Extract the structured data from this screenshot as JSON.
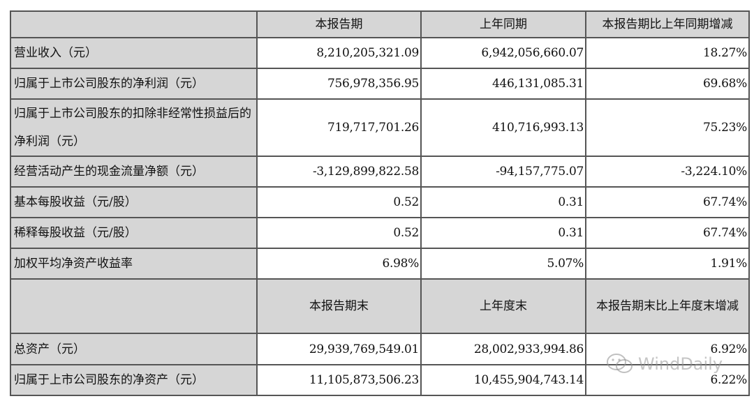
{
  "header1": [
    "",
    "本报告期",
    "上年同期",
    "本报告期比上年同期增减"
  ],
  "rows1": [
    {
      "label": "营业收入（元）",
      "current": "8,210,205,321.09",
      "prior": "6,942,056,660.07",
      "change": "18.27%"
    },
    {
      "label": "归属于上市公司股东的净利润（元）",
      "current": "756,978,356.95",
      "prior": "446,131,085.31",
      "change": "69.68%"
    },
    {
      "label": "归属于上市公司股东的扣除非经常性损益后的净利润（元）",
      "current": "719,717,701.26",
      "prior": "410,716,993.13",
      "change": "75.23%"
    },
    {
      "label": "经营活动产生的现金流量净额（元）",
      "current": "-3,129,899,822.58",
      "prior": "-94,157,775.07",
      "change": "-3,224.10%"
    },
    {
      "label": "基本每股收益（元/股）",
      "current": "0.52",
      "prior": "0.31",
      "change": "67.74%"
    },
    {
      "label": "稀释每股收益（元/股）",
      "current": "0.52",
      "prior": "0.31",
      "change": "67.74%"
    },
    {
      "label": "加权平均净资产收益率",
      "current": "6.98%",
      "prior": "5.07%",
      "change": "1.91%"
    }
  ],
  "header2": [
    "",
    "本报告期末",
    "上年度末",
    "本报告期末比上年度末增减"
  ],
  "rows2": [
    {
      "label": "总资产（元）",
      "current": "29,939,769,549.01",
      "prior": "28,002,933,994.86",
      "change": "6.92%"
    },
    {
      "label": "归属于上市公司股东的净资产（元）",
      "current": "11,105,873,506.23",
      "prior": "10,455,904,743.14",
      "change": "6.22%"
    }
  ],
  "watermark": {
    "text": "WindDaily",
    "icon": "wechat-icon"
  }
}
